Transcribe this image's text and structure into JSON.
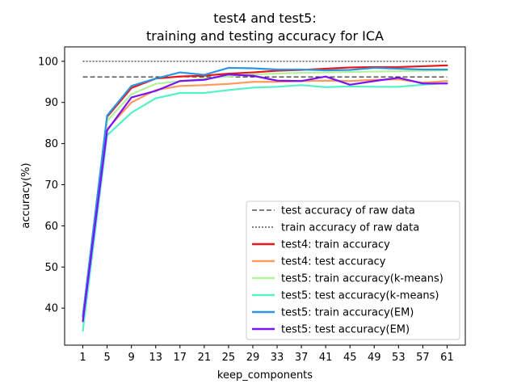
{
  "chart_data": {
    "type": "line",
    "title_line1": "test4 and test5:",
    "title_line2": "training and testing accuracy for ICA",
    "xlabel": "keep_components",
    "ylabel": "accuracy(%)",
    "x": [
      1,
      5,
      9,
      13,
      17,
      21,
      25,
      29,
      33,
      37,
      41,
      45,
      49,
      53,
      57,
      61
    ],
    "xticks": [
      "1",
      "5",
      "9",
      "13",
      "17",
      "21",
      "25",
      "29",
      "33",
      "37",
      "41",
      "45",
      "49",
      "53",
      "57",
      "61"
    ],
    "yticks": [
      40,
      50,
      60,
      70,
      80,
      90,
      100
    ],
    "xlim": [
      -2,
      64
    ],
    "ylim": [
      31,
      103.5
    ],
    "grid": false,
    "legend_position": "lower-right",
    "reference_lines": [
      {
        "name": "test accuracy of raw data",
        "y": 96.2,
        "style": "dashed",
        "color": "#000000"
      },
      {
        "name": "train accuracy of raw data",
        "y": 100.0,
        "style": "dotted",
        "color": "#000000"
      }
    ],
    "series": [
      {
        "name": "test4: train accuracy",
        "color": "#e8171a",
        "values": [
          38.0,
          86.5,
          93.5,
          95.8,
          96.3,
          96.5,
          97.0,
          97.3,
          97.7,
          97.9,
          98.2,
          98.5,
          98.6,
          98.6,
          98.8,
          99.0
        ]
      },
      {
        "name": "test4: test accuracy",
        "color": "#ff9a5c",
        "values": [
          37.5,
          83.5,
          90.0,
          93.0,
          94.0,
          94.2,
          94.5,
          95.0,
          95.0,
          95.2,
          95.3,
          95.2,
          95.5,
          95.6,
          94.8,
          95.2
        ]
      },
      {
        "name": "test5: train accuracy(k-means)",
        "color": "#b3f299",
        "values": [
          37.0,
          85.5,
          92.0,
          94.5,
          95.2,
          95.8,
          96.3,
          96.8,
          97.0,
          97.2,
          97.3,
          97.4,
          97.5,
          97.6,
          97.7,
          97.8
        ]
      },
      {
        "name": "test5: test accuracy(k-means)",
        "color": "#55f2c8",
        "values": [
          34.5,
          82.0,
          87.5,
          91.0,
          92.3,
          92.3,
          93.0,
          93.6,
          93.8,
          94.2,
          93.7,
          93.9,
          93.8,
          93.8,
          94.3,
          94.7
        ]
      },
      {
        "name": "test5: train accuracy(EM)",
        "color": "#2a96e0",
        "values": [
          38.0,
          86.8,
          94.0,
          95.8,
          97.3,
          96.7,
          98.4,
          98.3,
          98.0,
          98.0,
          97.8,
          97.9,
          98.4,
          98.2,
          98.0,
          98.0
        ]
      },
      {
        "name": "test5: test accuracy(EM)",
        "color": "#7a12f2",
        "values": [
          36.8,
          83.2,
          91.2,
          92.8,
          95.2,
          95.5,
          96.8,
          96.5,
          95.3,
          95.2,
          96.3,
          94.3,
          95.2,
          96.0,
          94.6,
          94.6
        ]
      }
    ]
  }
}
